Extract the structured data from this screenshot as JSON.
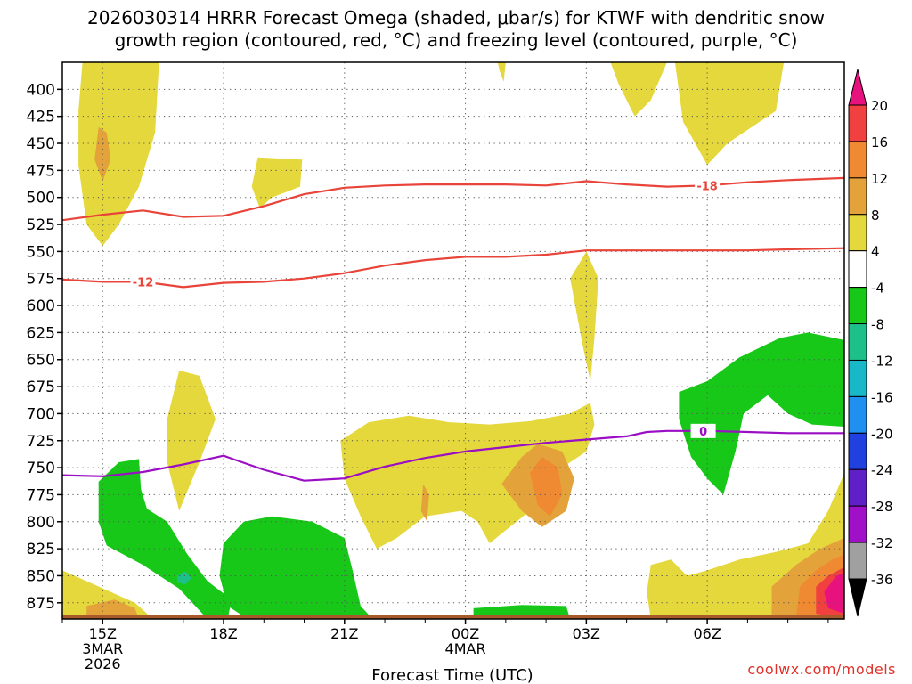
{
  "title_lines": [
    "2026030314 HRRR Forecast Omega (shaded, μbar/s) for KTWF with dendritic snow",
    "growth region (contoured, red, °C) and freezing level (contoured, purple, °C)"
  ],
  "credit": "coolwx.com/models",
  "chart_data": {
    "type": "contour",
    "title": "2026030314 HRRR Forecast Omega (shaded, μbar/s) for KTWF with dendritic snow growth region (contoured, red, °C) and freezing level (contoured, purple, °C)",
    "xlabel": "Forecast Time (UTC)",
    "ylabel": "",
    "x_range_hours": [
      -1,
      18.4
    ],
    "y_range_hPa": [
      375,
      890
    ],
    "y_ticks": [
      400,
      425,
      450,
      475,
      500,
      525,
      550,
      575,
      600,
      625,
      650,
      675,
      700,
      725,
      750,
      775,
      800,
      825,
      850,
      875
    ],
    "x_ticks": [
      {
        "h": 0,
        "lines": [
          "15Z",
          "3MAR",
          "2026"
        ]
      },
      {
        "h": 3,
        "lines": [
          "18Z"
        ]
      },
      {
        "h": 6,
        "lines": [
          "21Z"
        ]
      },
      {
        "h": 9,
        "lines": [
          "00Z",
          "4MAR"
        ]
      },
      {
        "h": 12,
        "lines": [
          "03Z"
        ]
      },
      {
        "h": 15,
        "lines": [
          "06Z"
        ]
      }
    ],
    "grid": true,
    "colorbar": {
      "placement": "right",
      "bands": [
        {
          "from": 20,
          "to": 24,
          "color": "#e8127e"
        },
        {
          "from": 16,
          "to": 20,
          "color": "#f04040"
        },
        {
          "from": 12,
          "to": 16,
          "color": "#f08a32"
        },
        {
          "from": 8,
          "to": 12,
          "color": "#e3a33a"
        },
        {
          "from": 4,
          "to": 8,
          "color": "#e5d83c"
        },
        {
          "from": -4,
          "to": 4,
          "color": "#ffffff"
        },
        {
          "from": -8,
          "to": -4,
          "color": "#18c818"
        },
        {
          "from": -12,
          "to": -8,
          "color": "#1ec08a"
        },
        {
          "from": -16,
          "to": -12,
          "color": "#18b8c8"
        },
        {
          "from": -20,
          "to": -16,
          "color": "#2090f0"
        },
        {
          "from": -24,
          "to": -20,
          "color": "#2040e0"
        },
        {
          "from": -28,
          "to": -24,
          "color": "#6020c8"
        },
        {
          "from": -32,
          "to": -28,
          "color": "#a010c8"
        },
        {
          "from": -36,
          "to": -32,
          "color": "#a0a0a0"
        },
        {
          "from": -40,
          "to": -36,
          "color": "#000000"
        }
      ],
      "labels": [
        20,
        16,
        12,
        8,
        4,
        -4,
        -8,
        -12,
        -16,
        -20,
        -24,
        -28,
        -32,
        -36
      ]
    },
    "contours": [
      {
        "name": "-18",
        "color": "#e8443a",
        "label_at_h": 15.0,
        "points": [
          [
            -1.0,
            521
          ],
          [
            0.0,
            516
          ],
          [
            1.0,
            512
          ],
          [
            2.0,
            518
          ],
          [
            3.0,
            517
          ],
          [
            4.0,
            508
          ],
          [
            5.0,
            497
          ],
          [
            6.0,
            491
          ],
          [
            7.0,
            489
          ],
          [
            8.0,
            488
          ],
          [
            9.0,
            488
          ],
          [
            10.0,
            488
          ],
          [
            11.0,
            489
          ],
          [
            12.0,
            485
          ],
          [
            13.0,
            488
          ],
          [
            14.0,
            490
          ],
          [
            15.0,
            489
          ],
          [
            16.0,
            486
          ],
          [
            17.0,
            484
          ],
          [
            18.4,
            482
          ]
        ]
      },
      {
        "name": "-12",
        "color": "#e8443a",
        "label_at_h": 1.0,
        "points": [
          [
            -1.0,
            576
          ],
          [
            0.0,
            578
          ],
          [
            1.0,
            578
          ],
          [
            2.0,
            583
          ],
          [
            3.0,
            579
          ],
          [
            4.0,
            578
          ],
          [
            5.0,
            575
          ],
          [
            6.0,
            570
          ],
          [
            7.0,
            563
          ],
          [
            8.0,
            558
          ],
          [
            9.0,
            555
          ],
          [
            10.0,
            555
          ],
          [
            11.0,
            553
          ],
          [
            12.0,
            549
          ],
          [
            13.0,
            549
          ],
          [
            14.0,
            549
          ],
          [
            15.0,
            549
          ],
          [
            16.0,
            549
          ],
          [
            17.0,
            548
          ],
          [
            18.4,
            547
          ]
        ]
      },
      {
        "name": "0",
        "color": "#9b0fc4",
        "label_at_h": 14.9,
        "points": [
          [
            -1.0,
            757
          ],
          [
            0.0,
            758
          ],
          [
            1.0,
            754
          ],
          [
            2.0,
            747
          ],
          [
            3.0,
            739
          ],
          [
            4.0,
            752
          ],
          [
            5.0,
            762
          ],
          [
            6.0,
            760
          ],
          [
            7.0,
            749
          ],
          [
            8.0,
            741
          ],
          [
            9.0,
            735
          ],
          [
            10.0,
            731
          ],
          [
            11.0,
            727
          ],
          [
            12.0,
            724
          ],
          [
            13.0,
            721
          ],
          [
            13.5,
            717
          ],
          [
            14.0,
            716
          ],
          [
            15.0,
            716
          ],
          [
            16.0,
            717
          ],
          [
            17.0,
            718
          ],
          [
            18.4,
            718
          ]
        ]
      }
    ]
  }
}
